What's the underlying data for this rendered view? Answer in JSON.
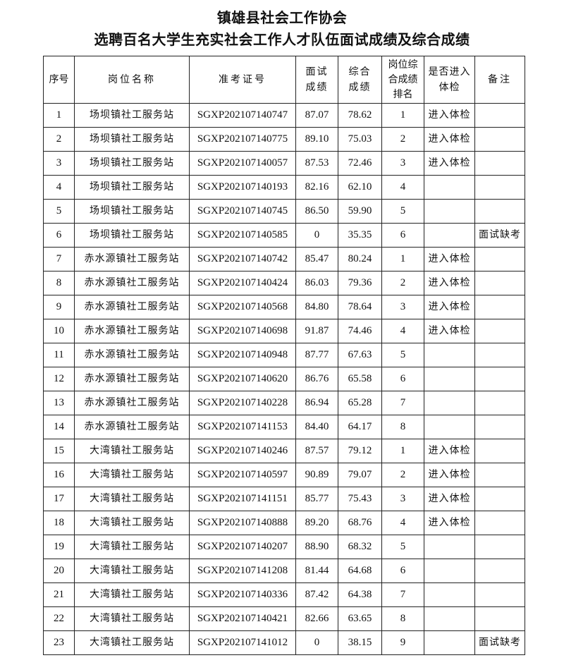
{
  "title": "镇雄县社会工作协会",
  "subtitle": "选聘百名大学生充实社会工作人才队伍面试成绩及综合成绩",
  "headers": {
    "seq": "序号",
    "position": "岗位名称",
    "ticket": "准考证号",
    "interview": "面试成绩",
    "composite": "综合成绩",
    "rank": "岗位综合成绩排名",
    "physical": "是否进入体检",
    "remark": "备注"
  },
  "rows": [
    {
      "seq": "1",
      "position": "场坝镇社工服务站",
      "ticket": "SGXP202107140747",
      "interview": "87.07",
      "composite": "78.62",
      "rank": "1",
      "physical": "进入体检",
      "remark": ""
    },
    {
      "seq": "2",
      "position": "场坝镇社工服务站",
      "ticket": "SGXP202107140775",
      "interview": "89.10",
      "composite": "75.03",
      "rank": "2",
      "physical": "进入体检",
      "remark": ""
    },
    {
      "seq": "3",
      "position": "场坝镇社工服务站",
      "ticket": "SGXP202107140057",
      "interview": "87.53",
      "composite": "72.46",
      "rank": "3",
      "physical": "进入体检",
      "remark": ""
    },
    {
      "seq": "4",
      "position": "场坝镇社工服务站",
      "ticket": "SGXP202107140193",
      "interview": "82.16",
      "composite": "62.10",
      "rank": "4",
      "physical": "",
      "remark": ""
    },
    {
      "seq": "5",
      "position": "场坝镇社工服务站",
      "ticket": "SGXP202107140745",
      "interview": "86.50",
      "composite": "59.90",
      "rank": "5",
      "physical": "",
      "remark": ""
    },
    {
      "seq": "6",
      "position": "场坝镇社工服务站",
      "ticket": "SGXP202107140585",
      "interview": "0",
      "composite": "35.35",
      "rank": "6",
      "physical": "",
      "remark": "面试缺考"
    },
    {
      "seq": "7",
      "position": "赤水源镇社工服务站",
      "ticket": "SGXP202107140742",
      "interview": "85.47",
      "composite": "80.24",
      "rank": "1",
      "physical": "进入体检",
      "remark": ""
    },
    {
      "seq": "8",
      "position": "赤水源镇社工服务站",
      "ticket": "SGXP202107140424",
      "interview": "86.03",
      "composite": "79.36",
      "rank": "2",
      "physical": "进入体检",
      "remark": ""
    },
    {
      "seq": "9",
      "position": "赤水源镇社工服务站",
      "ticket": "SGXP202107140568",
      "interview": "84.80",
      "composite": "78.64",
      "rank": "3",
      "physical": "进入体检",
      "remark": ""
    },
    {
      "seq": "10",
      "position": "赤水源镇社工服务站",
      "ticket": "SGXP202107140698",
      "interview": "91.87",
      "composite": "74.46",
      "rank": "4",
      "physical": "进入体检",
      "remark": ""
    },
    {
      "seq": "11",
      "position": "赤水源镇社工服务站",
      "ticket": "SGXP202107140948",
      "interview": "87.77",
      "composite": "67.63",
      "rank": "5",
      "physical": "",
      "remark": ""
    },
    {
      "seq": "12",
      "position": "赤水源镇社工服务站",
      "ticket": "SGXP202107140620",
      "interview": "86.76",
      "composite": "65.58",
      "rank": "6",
      "physical": "",
      "remark": ""
    },
    {
      "seq": "13",
      "position": "赤水源镇社工服务站",
      "ticket": "SGXP202107140228",
      "interview": "86.94",
      "composite": "65.28",
      "rank": "7",
      "physical": "",
      "remark": ""
    },
    {
      "seq": "14",
      "position": "赤水源镇社工服务站",
      "ticket": "SGXP202107141153",
      "interview": "84.40",
      "composite": "64.17",
      "rank": "8",
      "physical": "",
      "remark": ""
    },
    {
      "seq": "15",
      "position": "大湾镇社工服务站",
      "ticket": "SGXP202107140246",
      "interview": "87.57",
      "composite": "79.12",
      "rank": "1",
      "physical": "进入体检",
      "remark": ""
    },
    {
      "seq": "16",
      "position": "大湾镇社工服务站",
      "ticket": "SGXP202107140597",
      "interview": "90.89",
      "composite": "79.07",
      "rank": "2",
      "physical": "进入体检",
      "remark": ""
    },
    {
      "seq": "17",
      "position": "大湾镇社工服务站",
      "ticket": "SGXP202107141151",
      "interview": "85.77",
      "composite": "75.43",
      "rank": "3",
      "physical": "进入体检",
      "remark": ""
    },
    {
      "seq": "18",
      "position": "大湾镇社工服务站",
      "ticket": "SGXP202107140888",
      "interview": "89.20",
      "composite": "68.76",
      "rank": "4",
      "physical": "进入体检",
      "remark": ""
    },
    {
      "seq": "19",
      "position": "大湾镇社工服务站",
      "ticket": "SGXP202107140207",
      "interview": "88.90",
      "composite": "68.32",
      "rank": "5",
      "physical": "",
      "remark": ""
    },
    {
      "seq": "20",
      "position": "大湾镇社工服务站",
      "ticket": "SGXP202107141208",
      "interview": "81.44",
      "composite": "64.68",
      "rank": "6",
      "physical": "",
      "remark": ""
    },
    {
      "seq": "21",
      "position": "大湾镇社工服务站",
      "ticket": "SGXP202107140336",
      "interview": "87.42",
      "composite": "64.38",
      "rank": "7",
      "physical": "",
      "remark": ""
    },
    {
      "seq": "22",
      "position": "大湾镇社工服务站",
      "ticket": "SGXP202107140421",
      "interview": "82.66",
      "composite": "63.65",
      "rank": "8",
      "physical": "",
      "remark": ""
    },
    {
      "seq": "23",
      "position": "大湾镇社工服务站",
      "ticket": "SGXP202107141012",
      "interview": "0",
      "composite": "38.15",
      "rank": "9",
      "physical": "",
      "remark": "面试缺考"
    }
  ]
}
